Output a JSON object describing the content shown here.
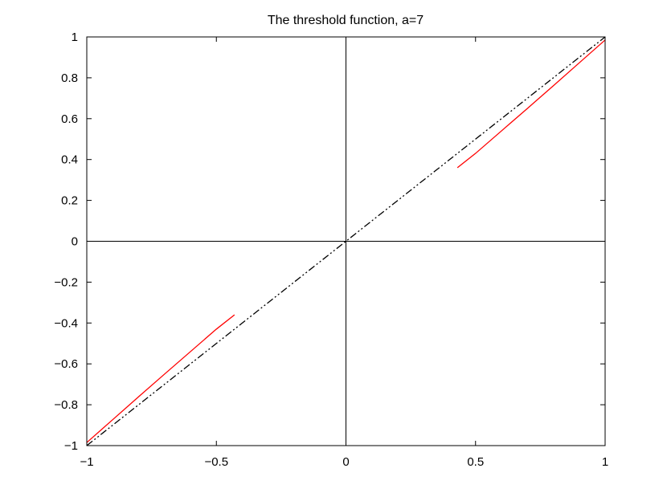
{
  "chart_data": {
    "type": "line",
    "title": "The threshold function, a=7",
    "xlabel": "",
    "ylabel": "",
    "xlim": [
      -1,
      1
    ],
    "ylim": [
      -1,
      1
    ],
    "grid": false,
    "x_ticks": [
      -1,
      -0.5,
      0,
      0.5,
      1
    ],
    "y_ticks": [
      -1,
      -0.8,
      -0.6,
      -0.4,
      -0.2,
      0,
      0.2,
      0.4,
      0.6,
      0.8,
      1
    ],
    "x_tick_labels": [
      "−1",
      "−0.5",
      "0",
      "0.5",
      "1"
    ],
    "y_tick_labels": [
      "−1",
      "−0.8",
      "−0.6",
      "−0.4",
      "−0.2",
      "0",
      "0.2",
      "0.4",
      "0.6",
      "0.8",
      "1"
    ],
    "reference_lines": [
      {
        "orientation": "vertical",
        "value": 0,
        "color": "#000000"
      },
      {
        "orientation": "horizontal",
        "value": 0,
        "color": "#000000"
      }
    ],
    "series": [
      {
        "color": "#000000",
        "style": "dash-dot",
        "x": [
          -1,
          1
        ],
        "y": [
          -1,
          1
        ]
      },
      {
        "color": "#ff0000",
        "style": "solid",
        "x": [
          -1.0,
          -0.9,
          -0.8,
          -0.7,
          -0.6,
          -0.5,
          -0.43
        ],
        "y": [
          -0.985,
          -0.873,
          -0.761,
          -0.65,
          -0.54,
          -0.43,
          -0.36
        ]
      },
      {
        "color": "#ff0000",
        "style": "solid",
        "x": [
          0.43,
          0.5,
          0.6,
          0.7,
          0.8,
          0.9,
          1.0
        ],
        "y": [
          0.36,
          0.43,
          0.54,
          0.65,
          0.761,
          0.873,
          0.985
        ]
      }
    ]
  }
}
